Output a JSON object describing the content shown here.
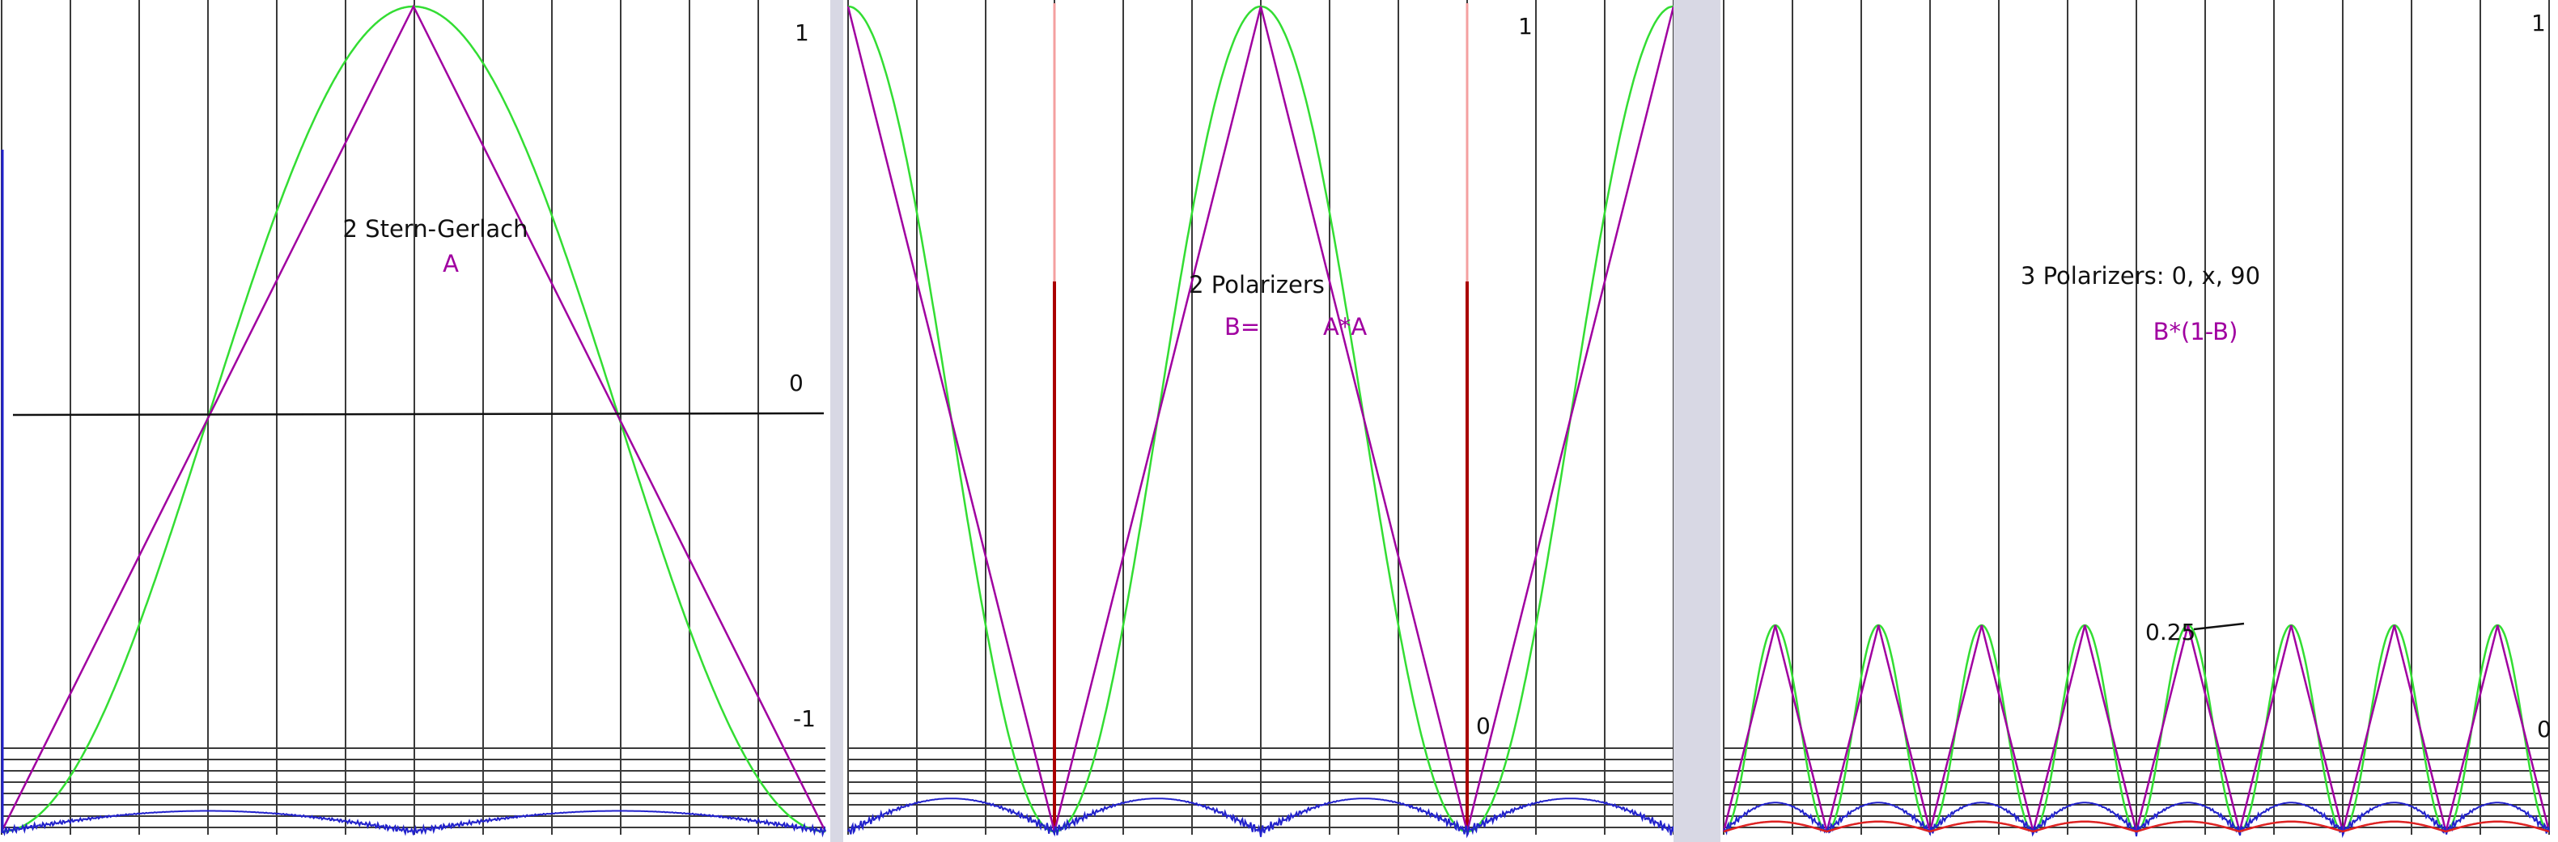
{
  "colors": {
    "background": "#ffffff",
    "grid": "#3a3a3a",
    "cosine": "#33dd33",
    "triangle": "#a000a0",
    "error_curve": "#2222cc",
    "marker_light": "#f4a0a0",
    "marker_dark": "#aa0000",
    "red_curve": "#dd2222",
    "label_text": "#111111",
    "formula_text": "#a000a0",
    "panel_separator": "#d8d8e4"
  },
  "chart_data": [
    {
      "type": "line",
      "title": "2 Stern-Gerlach",
      "formula": "A",
      "x_range": [
        0,
        360
      ],
      "ylim": [
        -1,
        1
      ],
      "tick_labels": {
        "top": "1",
        "middle": "0",
        "bottom": "-1"
      },
      "grid": true,
      "series": [
        {
          "key": "cosine",
          "color_key": "cosine",
          "x": [
            0,
            30,
            60,
            90,
            120,
            150,
            180,
            210,
            240,
            270,
            300,
            330,
            360
          ],
          "y": [
            -1,
            -0.866,
            -0.5,
            0,
            0.5,
            0.866,
            1,
            0.866,
            0.5,
            0,
            -0.5,
            -0.866,
            -1
          ]
        },
        {
          "key": "triangle",
          "color_key": "triangle",
          "x": [
            0,
            180,
            360
          ],
          "y": [
            -1,
            1,
            -1
          ]
        }
      ],
      "error_curve": {
        "color_key": "error_curve",
        "amplitude": 0.05,
        "half_period_deg": 90
      }
    },
    {
      "type": "line",
      "title": "2 Polarizers",
      "formula_left": "B=",
      "formula_right": "A*A",
      "x_range": [
        0,
        360
      ],
      "ylim": [
        0,
        1
      ],
      "tick_labels": {
        "top": "1",
        "bottom": "0"
      },
      "grid": true,
      "markers_x": [
        90,
        270
      ],
      "series": [
        {
          "key": "cosine",
          "color_key": "cosine",
          "x": [
            0,
            22.5,
            45,
            67.5,
            90,
            112.5,
            135,
            157.5,
            180,
            202.5,
            225,
            247.5,
            270,
            292.5,
            315,
            337.5,
            360
          ],
          "y": [
            1,
            0.854,
            0.5,
            0.146,
            0,
            0.146,
            0.5,
            0.854,
            1,
            0.854,
            0.5,
            0.146,
            0,
            0.146,
            0.5,
            0.854,
            1
          ]
        },
        {
          "key": "triangle",
          "color_key": "triangle",
          "x": [
            0,
            90,
            180,
            270,
            360
          ],
          "y": [
            1,
            0,
            1,
            0,
            1
          ]
        }
      ],
      "error_curve": {
        "color_key": "error_curve",
        "amplitude": 0.04,
        "half_period_deg": 45
      }
    },
    {
      "type": "line",
      "title": "3 Polarizers: 0, x, 90",
      "formula": "B*(1-B)",
      "x_range": [
        0,
        360
      ],
      "ylim": [
        0,
        1
      ],
      "tick_labels": {
        "top": "1",
        "bottom": "0"
      },
      "annotation": "0.25",
      "grid": true,
      "series": [
        {
          "key": "cosine",
          "color_key": "cosine",
          "x": [
            0,
            11.25,
            22.5,
            33.75,
            45,
            56.25,
            67.5,
            78.75,
            90,
            101.25,
            112.5,
            123.75,
            135,
            146.25,
            157.5,
            168.75,
            180,
            191.25,
            202.5,
            213.75,
            225,
            236.25,
            247.5,
            258.75,
            270,
            281.25,
            292.5,
            303.75,
            315,
            326.25,
            337.5,
            348.75,
            360
          ],
          "y": [
            0,
            0.125,
            0.213,
            0.25,
            0.213,
            0.125,
            0,
            0.125,
            0.213,
            0.25,
            0.213,
            0.125,
            0,
            0.125,
            0.213,
            0.25,
            0.213,
            0.125,
            0,
            0.125,
            0.213,
            0.25,
            0.213,
            0.125,
            0,
            0.125,
            0.213,
            0.25,
            0.213,
            0.125,
            0,
            0.125,
            0.213
          ]
        },
        {
          "key": "triangle",
          "color_key": "triangle",
          "x": [
            0,
            22.5,
            45,
            67.5,
            90,
            112.5,
            135,
            157.5,
            180,
            202.5,
            225,
            247.5,
            270,
            292.5,
            315,
            337.5,
            360
          ],
          "y": [
            0,
            0.25,
            0,
            0.25,
            0,
            0.25,
            0,
            0.25,
            0,
            0.25,
            0,
            0.25,
            0,
            0.25,
            0,
            0.25,
            0
          ]
        }
      ],
      "error_curve": {
        "color_key": "error_curve",
        "amplitude": 0.035,
        "half_period_deg": 22.5
      },
      "red_curve": {
        "color_key": "red_curve",
        "amplitude": 0.012,
        "half_period_deg": 22.5
      }
    }
  ]
}
